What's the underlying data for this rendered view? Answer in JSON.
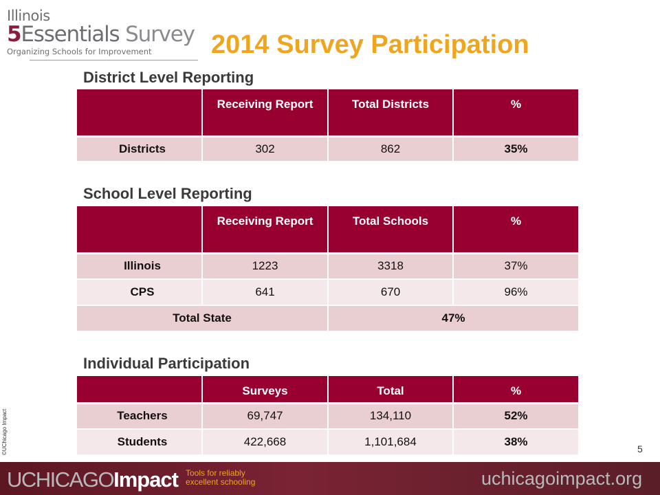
{
  "logo": {
    "line1": "Illinois",
    "line2_number": "5",
    "line2_word": "Essentials",
    "line2_survey": "Survey",
    "line3": "Organizing Schools for Improvement"
  },
  "slide_title": "2014 Survey Participation",
  "district": {
    "heading": "District Level Reporting",
    "headers": [
      "",
      "Receiving Report",
      "Total Districts",
      "%"
    ],
    "rows": [
      [
        "Districts",
        "302",
        "862",
        "35%"
      ]
    ]
  },
  "school": {
    "heading": "School Level Reporting",
    "headers": [
      "",
      "Receiving Report",
      "Total Schools",
      "%"
    ],
    "rows": [
      [
        "Illinois",
        "1223",
        "3318",
        "37%"
      ],
      [
        "CPS",
        "641",
        "670",
        "96%"
      ]
    ],
    "total_label": "Total State",
    "total_value": "47%"
  },
  "individual": {
    "heading": "Individual Participation",
    "headers": [
      "",
      "Surveys",
      "Total",
      "%"
    ],
    "rows": [
      [
        "Teachers",
        "69,747",
        "134,110",
        "52%"
      ],
      [
        "Students",
        "422,668",
        "1,101,684",
        "38%"
      ]
    ]
  },
  "copyright": "©UChicago Impact",
  "page_number": "5",
  "footer": {
    "brand_prefix": "UCHICAGO",
    "brand_suffix": "Impact",
    "tagline": "Tools for reliably excellent schooling",
    "site": "uchicagoimpact.org"
  },
  "colors": {
    "header_bg": "#970031",
    "title": "#f0a51e",
    "row_dark": "#e9cfd2",
    "row_light": "#f4e8ea"
  }
}
